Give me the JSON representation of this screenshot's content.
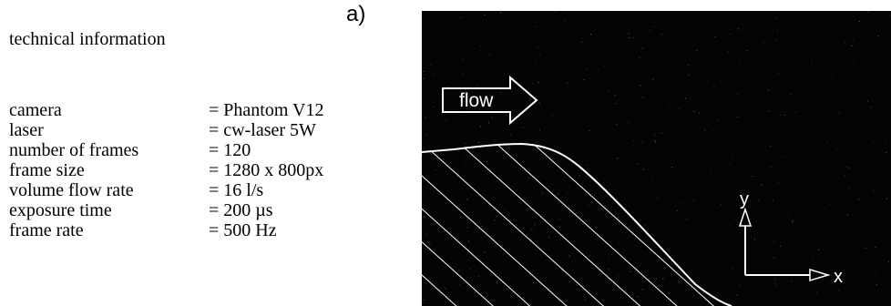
{
  "panel_label": "a)",
  "technical_info": {
    "title": "technical information",
    "rows": [
      {
        "key": "camera",
        "value": "= Phantom V12"
      },
      {
        "key": "laser",
        "value": "= cw-laser 5W"
      },
      {
        "key": "number of frames",
        "value": "= 120"
      },
      {
        "key": "frame size",
        "value": "= 1280 x 800px"
      },
      {
        "key": "volume flow rate",
        "value": "= 16 l/s"
      },
      {
        "key": "exposure time",
        "value": "= 200 µs"
      },
      {
        "key": "frame rate",
        "value": "= 500 Hz"
      }
    ]
  },
  "image": {
    "flow_label": "flow",
    "axis_y_label": "y",
    "axis_x_label": "x",
    "background_color": "#040404",
    "line_color": "#ffffff"
  }
}
